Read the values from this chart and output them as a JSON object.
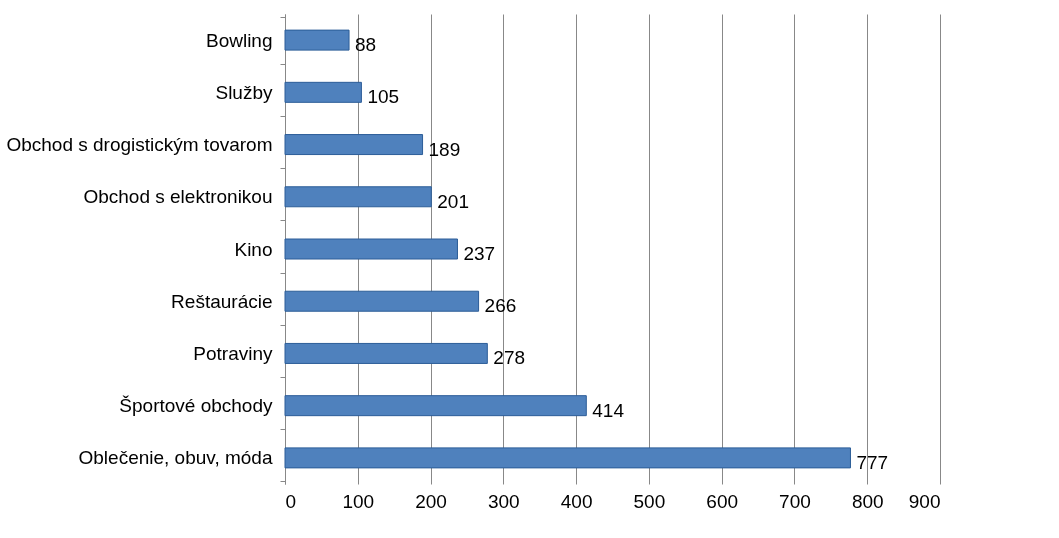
{
  "chart_data": {
    "type": "bar",
    "orientation": "horizontal",
    "categories": [
      "Bowling",
      "Služby",
      "Obchod s drogistickým tovarom",
      "Obchod s elektronikou",
      "Kino",
      "Reštaurácie",
      "Potraviny",
      "Športové obchody",
      "Oblečenie, obuv, móda"
    ],
    "values": [
      88,
      105,
      189,
      201,
      237,
      266,
      278,
      414,
      777
    ],
    "color": "#4f81bd",
    "xlim": [
      0,
      900
    ],
    "xticks": [
      0,
      100,
      200,
      300,
      400,
      500,
      600,
      700,
      800,
      900
    ],
    "grid": "x",
    "data_labels": true
  }
}
